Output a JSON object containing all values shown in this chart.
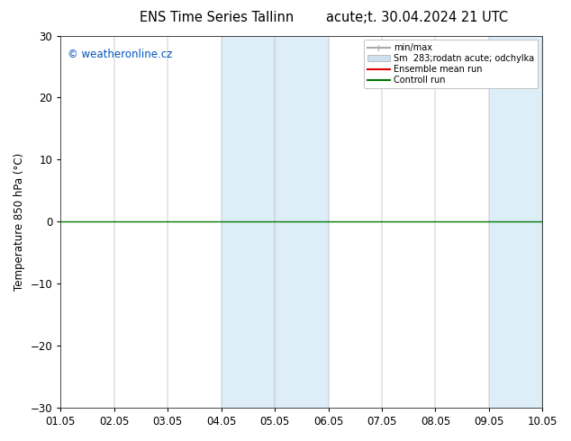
{
  "title_left": "ENS Time Series Tallinn",
  "title_right": "acute;t. 30.04.2024 21 UTC",
  "ylabel": "Temperature 850 hPa (°C)",
  "ylim": [
    -30,
    30
  ],
  "yticks": [
    -30,
    -20,
    -10,
    0,
    10,
    20,
    30
  ],
  "xlim": [
    0,
    9
  ],
  "xtick_labels": [
    "01.05",
    "02.05",
    "03.05",
    "04.05",
    "05.05",
    "06.05",
    "07.05",
    "08.05",
    "09.05",
    "10.05"
  ],
  "xtick_positions": [
    0,
    1,
    2,
    3,
    4,
    5,
    6,
    7,
    8,
    9
  ],
  "shaded_bands": [
    {
      "xmin": 3,
      "xmax": 4,
      "color": "#ddeef8"
    },
    {
      "xmin": 4,
      "xmax": 5,
      "color": "#ddeef8"
    },
    {
      "xmin": 8,
      "xmax": 9,
      "color": "#ddeef8"
    }
  ],
  "copyright_text": "© weatheronline.cz",
  "copyright_color": "#0055bb",
  "legend_label_minmax": "min/max",
  "legend_label_sm": "Sm  283;rodatn acute; odchylka",
  "legend_label_ens": "Ensemble mean run",
  "legend_label_ctrl": "Controll run",
  "color_minmax": "#aaaaaa",
  "color_sm": "#cce0f0",
  "color_ens": "#dd0000",
  "color_ctrl": "#007700",
  "background_color": "#ffffff",
  "zero_line_color": "#007700",
  "spine_color": "#444444",
  "font_size": 8.5,
  "title_fontsize": 10.5
}
